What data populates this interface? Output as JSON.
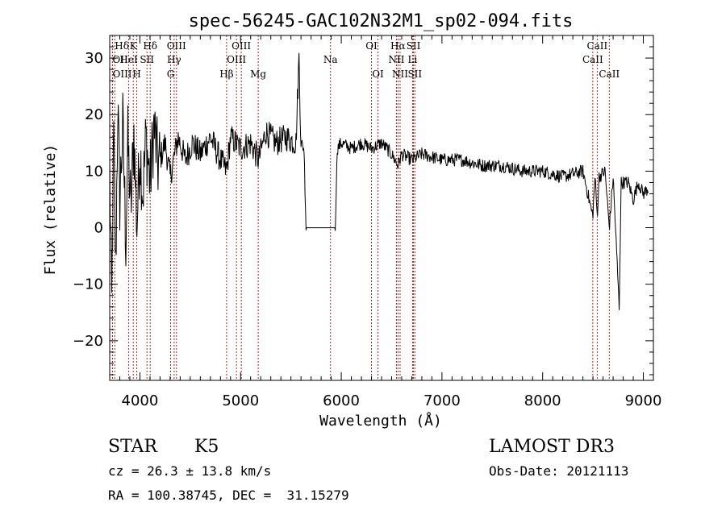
{
  "chart_data": {
    "type": "line",
    "title": "spec-56245-GAC102N32M1_sp02-094.fits",
    "xlabel": "Wavelength (Å)",
    "ylabel": "Flux (relative)",
    "xlim": [
      3700,
      9100
    ],
    "ylim": [
      -27,
      34
    ],
    "xticks": [
      4000,
      5000,
      6000,
      7000,
      8000,
      9000
    ],
    "yticks": [
      -20,
      -10,
      0,
      10,
      20,
      30
    ],
    "spectrum_anchors": [
      [
        3700,
        10
      ],
      [
        3720,
        -14
      ],
      [
        3740,
        16
      ],
      [
        3760,
        -8
      ],
      [
        3780,
        22
      ],
      [
        3800,
        5
      ],
      [
        3830,
        18
      ],
      [
        3860,
        -2
      ],
      [
        3880,
        15
      ],
      [
        3910,
        3
      ],
      [
        3940,
        17
      ],
      [
        3970,
        0
      ],
      [
        4000,
        14
      ],
      [
        4030,
        6
      ],
      [
        4060,
        16
      ],
      [
        4100,
        8
      ],
      [
        4140,
        18
      ],
      [
        4180,
        11
      ],
      [
        4250,
        15
      ],
      [
        4300,
        9
      ],
      [
        4380,
        16
      ],
      [
        4450,
        12
      ],
      [
        4520,
        15
      ],
      [
        4600,
        13
      ],
      [
        4700,
        16
      ],
      [
        4800,
        12
      ],
      [
        4860,
        10
      ],
      [
        4900,
        16
      ],
      [
        5000,
        14
      ],
      [
        5100,
        15
      ],
      [
        5180,
        12
      ],
      [
        5250,
        17
      ],
      [
        5350,
        15
      ],
      [
        5450,
        16
      ],
      [
        5550,
        15
      ],
      [
        5580,
        30
      ],
      [
        5600,
        15
      ],
      [
        5630,
        14
      ],
      [
        5650,
        0
      ],
      [
        5940,
        0
      ],
      [
        5960,
        14
      ],
      [
        6000,
        15
      ],
      [
        6100,
        14
      ],
      [
        6200,
        15
      ],
      [
        6300,
        14
      ],
      [
        6400,
        15
      ],
      [
        6500,
        13
      ],
      [
        6563,
        11
      ],
      [
        6600,
        13
      ],
      [
        6700,
        12
      ],
      [
        6800,
        13
      ],
      [
        7000,
        12
      ],
      [
        7200,
        12
      ],
      [
        7400,
        11
      ],
      [
        7600,
        11
      ],
      [
        7800,
        10
      ],
      [
        8000,
        10
      ],
      [
        8200,
        9
      ],
      [
        8400,
        10
      ],
      [
        8498,
        2
      ],
      [
        8520,
        9
      ],
      [
        8542,
        2
      ],
      [
        8560,
        9
      ],
      [
        8620,
        10
      ],
      [
        8662,
        0
      ],
      [
        8700,
        9
      ],
      [
        8760,
        -14
      ],
      [
        8780,
        8
      ],
      [
        8850,
        8
      ],
      [
        8900,
        5
      ],
      [
        8950,
        8
      ],
      [
        9000,
        6
      ],
      [
        9050,
        7
      ]
    ],
    "lines": [
      {
        "label": "Hδ",
        "wl": 3750,
        "row": 0,
        "anchor": "start"
      },
      {
        "label": "OII",
        "wl": 3727,
        "row": 1,
        "anchor": "start"
      },
      {
        "label": "OIII",
        "wl": 3728,
        "row": 2,
        "anchor": "start"
      },
      {
        "label": "K",
        "wl": 3934,
        "row": 0,
        "anchor": "middle"
      },
      {
        "label": "HeI",
        "wl": 3889,
        "row": 1,
        "anchor": "middle"
      },
      {
        "label": "H",
        "wl": 3969,
        "row": 2,
        "anchor": "middle"
      },
      {
        "label": "Hδ",
        "wl": 4102,
        "row": 0,
        "anchor": "middle"
      },
      {
        "label": "SII",
        "wl": 4070,
        "row": 1,
        "anchor": "middle"
      },
      {
        "label": "OIII",
        "wl": 4363,
        "row": 0,
        "anchor": "middle"
      },
      {
        "label": "Hγ",
        "wl": 4340,
        "row": 1,
        "anchor": "middle"
      },
      {
        "label": "G",
        "wl": 4305,
        "row": 2,
        "anchor": "middle"
      },
      {
        "label": "Hβ",
        "wl": 4861,
        "row": 2,
        "anchor": "middle"
      },
      {
        "label": "OIII",
        "wl": 5007,
        "row": 0,
        "anchor": "middle"
      },
      {
        "label": "OIII",
        "wl": 4959,
        "row": 1,
        "anchor": "middle"
      },
      {
        "label": "Mg",
        "wl": 5175,
        "row": 2,
        "anchor": "middle"
      },
      {
        "label": "Na",
        "wl": 5893,
        "row": 1,
        "anchor": "middle"
      },
      {
        "label": "OI",
        "wl": 6300,
        "row": 0,
        "anchor": "middle"
      },
      {
        "label": "OI",
        "wl": 6364,
        "row": 2,
        "anchor": "middle"
      },
      {
        "label": "Hα",
        "wl": 6563,
        "row": 0,
        "anchor": "middle"
      },
      {
        "label": "NII",
        "wl": 6548,
        "row": 1,
        "anchor": "middle"
      },
      {
        "label": "NII",
        "wl": 6584,
        "row": 2,
        "anchor": "middle"
      },
      {
        "label": "SII",
        "wl": 6717,
        "row": 0,
        "anchor": "middle"
      },
      {
        "label": "Li",
        "wl": 6708,
        "row": 1,
        "anchor": "middle"
      },
      {
        "label": "SII",
        "wl": 6731,
        "row": 2,
        "anchor": "middle"
      },
      {
        "label": "CaII",
        "wl": 8542,
        "row": 0,
        "anchor": "middle"
      },
      {
        "label": "CaII",
        "wl": 8498,
        "row": 1,
        "anchor": "middle"
      },
      {
        "label": "CaII",
        "wl": 8662,
        "row": 2,
        "anchor": "middle"
      }
    ]
  },
  "info": {
    "class_label": "STAR",
    "subclass": "K5",
    "survey": "LAMOST DR3",
    "cz": "cz = 26.3 ± 13.8 km/s",
    "obs_date": "Obs-Date: 20121113",
    "radec": "RA = 100.38745, DEC =  31.15279"
  },
  "colors": {
    "line_marker": "#b22222",
    "spectrum": "#000000"
  }
}
